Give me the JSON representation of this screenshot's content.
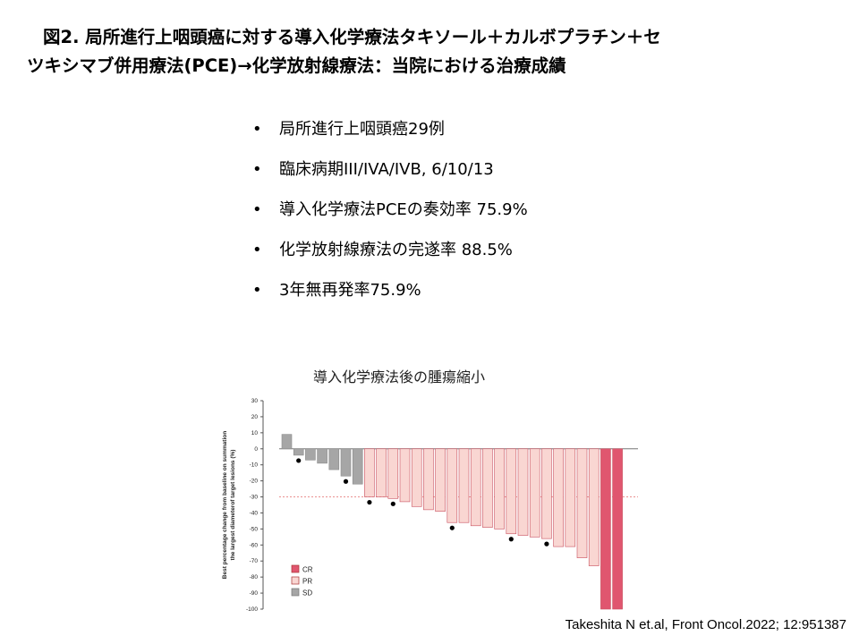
{
  "slide": {
    "title_line1": "図2. 局所進行上咽頭癌に対する導入化学療法タキソール＋カルボプラチン＋セ",
    "title_line2": "ツキシマブ併用療法(PCE)→化学放射線療法：当院における治療成績",
    "bullets": [
      "局所進行上咽頭癌29例",
      "臨床病期III/IVA/IVB, 6/10/13",
      "導入化学療法PCEの奏効率 75.9%",
      "化学放射線療法の完遂率 88.5%",
      "3年無再発率75.9%"
    ],
    "bullet_marker": "•",
    "chart_title": "導入化学療法後の腫瘍縮小",
    "citation": "Takeshita N et.al, Front Oncol.2022; 12:951387"
  },
  "colors": {
    "CR": "#e0566f",
    "PR": "#f9d6d2",
    "SD": "#a6a6a6",
    "threshold": "#e88080"
  },
  "chart_data": {
    "type": "bar",
    "title": "導入化学療法後の腫瘍縮小",
    "ylabel_lines": [
      "Best percentage change from baseline on summation",
      "the largest diameterof target lesions (%)"
    ],
    "ylim": [
      -100,
      30
    ],
    "yticks": [
      30,
      20,
      10,
      0,
      -10,
      -20,
      -30,
      -40,
      -50,
      -60,
      -70,
      -80,
      -90,
      -100
    ],
    "threshold": -30,
    "values": [
      9,
      -4,
      -7,
      -9,
      -13,
      -17,
      -22,
      -30,
      -30,
      -31,
      -33,
      -36,
      -38,
      -39,
      -46,
      -46,
      -48,
      -49,
      -50,
      -53,
      -54,
      -55,
      -56,
      -61,
      -61,
      -68,
      -73,
      -100,
      -100
    ],
    "response": [
      "SD",
      "SD",
      "SD",
      "SD",
      "SD",
      "SD",
      "SD",
      "PR",
      "PR",
      "PR",
      "PR",
      "PR",
      "PR",
      "PR",
      "PR",
      "PR",
      "PR",
      "PR",
      "PR",
      "PR",
      "PR",
      "PR",
      "PR",
      "PR",
      "PR",
      "PR",
      "PR",
      "CR",
      "CR"
    ],
    "dots": [
      1,
      5,
      7,
      9,
      14,
      19,
      22
    ],
    "legend": [
      "CR",
      "PR",
      "SD"
    ],
    "legend_position": "bottom-left"
  }
}
